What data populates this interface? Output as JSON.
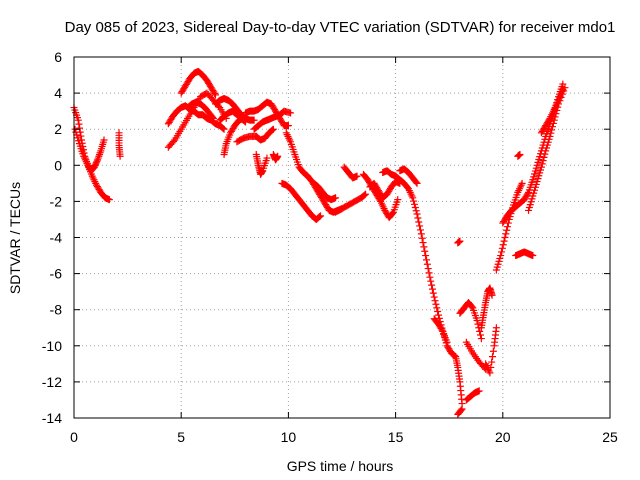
{
  "chart_data": {
    "type": "scatter",
    "title": "Day 085 of 2023, Sidereal Day-to-day VTEC variation (SDTVAR) for receiver mdo1",
    "xlabel": "GPS time / hours",
    "ylabel": "SDTVAR / TECUs",
    "xlim": [
      0,
      25
    ],
    "ylim": [
      -14,
      6
    ],
    "xticks": [
      0,
      5,
      10,
      15,
      20,
      25
    ],
    "yticks": [
      -14,
      -12,
      -10,
      -8,
      -6,
      -4,
      -2,
      0,
      2,
      4,
      6
    ],
    "grid": true,
    "marker": "plus",
    "color": "#ff0000",
    "series": [
      {
        "name": "s1",
        "x": [
          0.0,
          0.2,
          0.35,
          0.5,
          0.65,
          0.8,
          0.95,
          1.1,
          1.25,
          1.4
        ],
        "y": [
          3.2,
          2.5,
          1.4,
          0.5,
          0.0,
          -0.3,
          -0.1,
          0.3,
          0.8,
          1.4
        ]
      },
      {
        "name": "s2",
        "x": [
          0.05,
          0.25,
          0.45,
          0.65,
          0.85,
          1.05,
          1.25,
          1.45,
          1.65
        ],
        "y": [
          2.0,
          1.2,
          0.5,
          0.0,
          -0.6,
          -1.1,
          -1.5,
          -1.8,
          -1.9
        ]
      },
      {
        "name": "s3",
        "x": [
          2.1,
          2.1,
          2.15
        ],
        "y": [
          1.8,
          1.1,
          0.5
        ]
      },
      {
        "name": "s4",
        "x": [
          4.4,
          4.6,
          4.8,
          5.0,
          5.2,
          5.4,
          5.6,
          5.8,
          6.0,
          6.2,
          6.4,
          6.6,
          6.8,
          7.0
        ],
        "y": [
          2.3,
          2.7,
          3.0,
          3.2,
          3.3,
          3.1,
          3.0,
          2.8,
          2.8,
          2.6,
          2.5,
          2.3,
          2.2,
          2.0
        ]
      },
      {
        "name": "s5",
        "x": [
          4.4,
          4.7,
          5.0,
          5.3,
          5.6,
          5.9,
          6.2,
          6.5,
          6.8,
          7.1
        ],
        "y": [
          1.0,
          1.4,
          2.0,
          2.6,
          3.2,
          3.8,
          4.0,
          3.6,
          3.2,
          2.6
        ]
      },
      {
        "name": "s6",
        "x": [
          5.0,
          5.2,
          5.4,
          5.6,
          5.8,
          6.0,
          6.2,
          6.4,
          6.6
        ],
        "y": [
          4.0,
          4.4,
          4.8,
          5.1,
          5.2,
          5.0,
          4.7,
          4.3,
          3.9
        ]
      },
      {
        "name": "s7",
        "x": [
          5.3,
          5.5,
          5.7,
          5.9,
          6.1,
          6.3,
          6.5
        ],
        "y": [
          3.2,
          3.4,
          3.5,
          3.4,
          3.2,
          2.9,
          2.6
        ]
      },
      {
        "name": "s8",
        "x": [
          6.6,
          6.8,
          7.0,
          7.2,
          7.4,
          7.6,
          7.8,
          8.0,
          8.2,
          8.4
        ],
        "y": [
          3.4,
          3.6,
          3.7,
          3.6,
          3.4,
          3.1,
          2.8,
          2.6,
          2.5,
          2.5
        ]
      },
      {
        "name": "s9",
        "x": [
          6.8,
          7.0,
          7.2,
          7.4,
          7.6,
          7.8,
          8.0
        ],
        "y": [
          2.5,
          2.7,
          2.9,
          3.0,
          2.8,
          2.6,
          2.4
        ]
      },
      {
        "name": "s10",
        "x": [
          7.0,
          7.1,
          7.3,
          7.5,
          7.7,
          7.9
        ],
        "y": [
          0.6,
          1.2,
          1.8,
          2.2,
          2.5,
          2.6
        ]
      },
      {
        "name": "s11",
        "x": [
          8.0,
          8.2,
          8.4,
          8.6,
          8.8,
          9.0,
          9.2,
          9.4,
          9.6,
          9.8,
          10.0
        ],
        "y": [
          2.9,
          3.0,
          3.0,
          3.1,
          3.3,
          3.5,
          3.4,
          3.0,
          2.6,
          2.2,
          2.2
        ]
      },
      {
        "name": "s12",
        "x": [
          8.4,
          8.6,
          8.8,
          9.0,
          9.2,
          9.4,
          9.6,
          9.8,
          10.1
        ],
        "y": [
          2.0,
          2.2,
          2.4,
          2.5,
          2.6,
          2.7,
          2.8,
          3.0,
          2.9
        ]
      },
      {
        "name": "s13",
        "x": [
          8.5,
          8.7,
          8.9,
          9.1,
          9.3
        ],
        "y": [
          1.6,
          1.4,
          1.5,
          1.8,
          2.0
        ]
      },
      {
        "name": "s14",
        "x": [
          7.6,
          7.9,
          8.2,
          8.5
        ],
        "y": [
          1.3,
          1.5,
          1.6,
          1.6
        ]
      },
      {
        "name": "s15",
        "x": [
          8.5,
          8.6,
          8.7,
          8.8,
          9.0
        ],
        "y": [
          0.6,
          0.0,
          -0.5,
          -0.3,
          0.4
        ]
      },
      {
        "name": "s16",
        "x": [
          9.3,
          9.4,
          9.5
        ],
        "y": [
          0.6,
          0.3,
          0.5
        ]
      },
      {
        "name": "s17",
        "x": [
          9.9,
          10.1,
          10.3,
          10.5,
          10.7,
          10.9,
          11.1,
          11.3,
          11.5,
          11.7,
          11.9,
          12.1,
          12.3,
          12.5
        ],
        "y": [
          1.8,
          1.3,
          0.6,
          -0.1,
          -0.4,
          -0.6,
          -0.9,
          -1.3,
          -1.7,
          -2.1,
          -2.5,
          -2.6,
          -2.5,
          -2.4
        ]
      },
      {
        "name": "s18",
        "x": [
          9.7,
          9.9,
          10.1,
          10.3,
          10.5,
          10.7,
          10.9,
          11.1,
          11.3,
          11.5
        ],
        "y": [
          -1.0,
          -1.1,
          -1.3,
          -1.6,
          -1.9,
          -2.2,
          -2.5,
          -2.8,
          -3.0,
          -2.8
        ]
      },
      {
        "name": "s19",
        "x": [
          11.2,
          11.4,
          11.6,
          11.8,
          12.0,
          12.2
        ],
        "y": [
          -1.0,
          -1.2,
          -1.5,
          -1.8,
          -1.9,
          -1.8
        ]
      },
      {
        "name": "s20",
        "x": [
          12.2,
          12.5,
          12.8,
          13.1,
          13.4,
          13.6
        ],
        "y": [
          -2.6,
          -2.4,
          -2.2,
          -2.0,
          -1.8,
          -1.6
        ]
      },
      {
        "name": "s21",
        "x": [
          12.6,
          12.8,
          13.0,
          13.2
        ],
        "y": [
          -0.1,
          -0.4,
          -0.7,
          -0.6
        ]
      },
      {
        "name": "s22",
        "x": [
          13.5,
          13.7,
          13.9,
          14.1,
          14.3,
          14.5,
          14.7,
          14.9,
          15.1
        ],
        "y": [
          -0.5,
          -0.8,
          -1.2,
          -1.6,
          -2.0,
          -2.5,
          -2.9,
          -2.6,
          -1.9
        ]
      },
      {
        "name": "s23",
        "x": [
          13.8,
          14.0,
          14.2,
          14.4,
          14.6,
          14.8,
          15.0,
          15.2
        ],
        "y": [
          -1.2,
          -1.0,
          -1.4,
          -1.8,
          -1.6,
          -1.2,
          -0.9,
          -1.0
        ]
      },
      {
        "name": "s24",
        "x": [
          14.4,
          14.6,
          14.8,
          15.0
        ],
        "y": [
          -0.4,
          -0.3,
          -0.5,
          -0.6
        ]
      },
      {
        "name": "s25",
        "x": [
          15.0,
          15.2,
          15.4,
          15.6,
          15.8,
          16.0,
          16.2,
          16.4,
          16.6,
          16.8,
          17.0,
          17.2,
          17.4,
          17.6,
          17.8
        ],
        "y": [
          -0.6,
          -0.8,
          -1.0,
          -1.3,
          -1.8,
          -2.7,
          -3.8,
          -5.0,
          -6.2,
          -7.3,
          -8.3,
          -9.2,
          -10.0,
          -10.4,
          -10.6
        ]
      },
      {
        "name": "s26",
        "x": [
          15.2,
          15.4,
          15.6,
          15.8,
          16.0
        ],
        "y": [
          -0.3,
          -0.2,
          -0.4,
          -0.7,
          -1.0
        ]
      },
      {
        "name": "s27",
        "x": [
          16.8,
          17.0,
          17.2,
          17.4
        ],
        "y": [
          -8.5,
          -8.8,
          -9.2,
          -9.8
        ]
      },
      {
        "name": "s28",
        "x": [
          17.8,
          17.9,
          18.0,
          18.1
        ],
        "y": [
          -10.6,
          -11.2,
          -12.0,
          -13.2
        ]
      },
      {
        "name": "s29",
        "x": [
          17.9,
          18.1
        ],
        "y": [
          -13.8,
          -13.5
        ]
      },
      {
        "name": "s30",
        "x": [
          18.3,
          18.5,
          18.7,
          18.9
        ],
        "y": [
          -13.0,
          -12.8,
          -12.6,
          -12.5
        ]
      },
      {
        "name": "s31",
        "x": [
          17.9,
          18.0
        ],
        "y": [
          -4.3,
          -4.2
        ]
      },
      {
        "name": "s32",
        "x": [
          18.0,
          18.2,
          18.4,
          18.6,
          18.8,
          19.0
        ],
        "y": [
          -8.2,
          -7.9,
          -7.6,
          -7.9,
          -8.6,
          -9.6
        ]
      },
      {
        "name": "s33",
        "x": [
          18.3,
          18.6,
          18.9,
          19.2
        ],
        "y": [
          -9.8,
          -10.4,
          -10.9,
          -11.3
        ]
      },
      {
        "name": "s34",
        "x": [
          19.0,
          19.1,
          19.2,
          19.3,
          19.4,
          19.5
        ],
        "y": [
          -9.0,
          -8.3,
          -7.6,
          -7.0,
          -6.8,
          -7.2
        ]
      },
      {
        "name": "s35",
        "x": [
          19.2,
          19.4,
          19.6,
          19.7
        ],
        "y": [
          -11.0,
          -11.5,
          -10.0,
          -9.0
        ]
      },
      {
        "name": "s36",
        "x": [
          19.7,
          19.9,
          20.1,
          20.3,
          20.5,
          20.7,
          20.9
        ],
        "y": [
          -5.8,
          -5.0,
          -4.0,
          -3.0,
          -2.2,
          -1.5,
          -1.0
        ]
      },
      {
        "name": "s37",
        "x": [
          20.0,
          20.2,
          20.4,
          20.6,
          20.8,
          21.0,
          21.2,
          21.4,
          21.6,
          21.8,
          22.0,
          22.2,
          22.4,
          22.6,
          22.8
        ],
        "y": [
          -3.2,
          -2.8,
          -2.5,
          -2.3,
          -2.1,
          -1.9,
          -1.5,
          -0.8,
          0.0,
          0.8,
          1.6,
          2.3,
          3.0,
          3.8,
          4.5
        ]
      },
      {
        "name": "s38",
        "x": [
          20.7,
          20.8
        ],
        "y": [
          0.5,
          0.6
        ]
      },
      {
        "name": "s39",
        "x": [
          20.6,
          20.8,
          21.0,
          21.2,
          21.4
        ],
        "y": [
          -5.0,
          -4.9,
          -4.8,
          -4.9,
          -5.0
        ]
      },
      {
        "name": "s40",
        "x": [
          21.2,
          21.4,
          21.6,
          21.8,
          22.0,
          22.2,
          22.4,
          22.6,
          22.9
        ],
        "y": [
          -2.5,
          -1.7,
          -0.9,
          -0.1,
          0.8,
          1.6,
          2.5,
          3.4,
          4.3
        ]
      },
      {
        "name": "s41",
        "x": [
          21.8,
          22.0,
          22.2,
          22.4,
          22.6,
          22.8
        ],
        "y": [
          1.8,
          2.2,
          2.6,
          3.1,
          3.6,
          4.2
        ]
      }
    ]
  }
}
